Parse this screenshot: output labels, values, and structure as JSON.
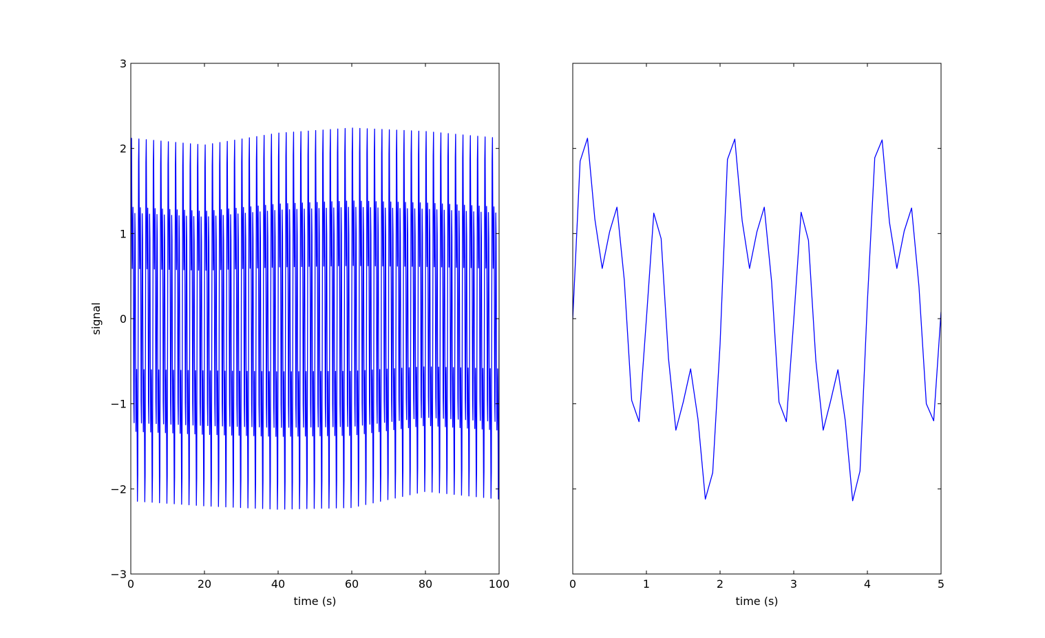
{
  "chart_data": [
    {
      "type": "line",
      "title": "",
      "xlabel": "time (s)",
      "ylabel": "signal",
      "xlim": [
        0,
        100
      ],
      "ylim": [
        -3,
        3
      ],
      "xticks": [
        0,
        20,
        40,
        60,
        80,
        100
      ],
      "yticks": [
        -3,
        -2,
        -1,
        0,
        1,
        2,
        3
      ],
      "xtick_labels": [
        "0",
        "20",
        "40",
        "60",
        "80",
        "100"
      ],
      "ytick_labels": [
        "−3",
        "−2",
        "−1",
        "0",
        "1",
        "2",
        "3"
      ],
      "grid": false,
      "series": [
        {
          "color": "#0000ff",
          "signal_model": {
            "sample_step": 0.1,
            "period": 2.0,
            "pattern": [
              0.0,
              1.85,
              2.12,
              1.17,
              0.59,
              1.02,
              1.31,
              0.45,
              -0.96,
              -1.21,
              0.0,
              1.24,
              0.94,
              -0.47,
              -1.31,
              -0.98,
              -0.59,
              -1.18,
              -2.12,
              -1.81
            ],
            "amplitude_envelope": {
              "x": [
                0,
                20,
                40,
                60,
                80,
                100
              ],
              "peak": [
                2.12,
                2.04,
                2.18,
                2.24,
                2.2,
                2.12
              ],
              "trough": [
                -2.14,
                -2.2,
                -2.24,
                -2.22,
                -2.03,
                -2.12
              ]
            }
          }
        }
      ]
    },
    {
      "type": "line",
      "title": "",
      "xlabel": "time (s)",
      "ylabel": "",
      "xlim": [
        0,
        5
      ],
      "ylim": [
        -3,
        3
      ],
      "xticks": [
        0,
        1,
        2,
        3,
        4,
        5
      ],
      "yticks": [
        -3,
        -2,
        -1,
        0,
        1,
        2,
        3
      ],
      "xtick_labels": [
        "0",
        "1",
        "2",
        "3",
        "4",
        "5"
      ],
      "ytick_labels": [],
      "grid": false,
      "series": [
        {
          "color": "#0000ff",
          "x": [
            0.0,
            0.1,
            0.2,
            0.3,
            0.4,
            0.5,
            0.6,
            0.7,
            0.8,
            0.9,
            1.0,
            1.1,
            1.2,
            1.3,
            1.4,
            1.5,
            1.6,
            1.7,
            1.8,
            1.9,
            2.0,
            2.1,
            2.2,
            2.3,
            2.4,
            2.5,
            2.6,
            2.7,
            2.8,
            2.9,
            3.0,
            3.1,
            3.2,
            3.3,
            3.4,
            3.5,
            3.6,
            3.7,
            3.8,
            3.9,
            4.0,
            4.1,
            4.2,
            4.3,
            4.4,
            4.5,
            4.6,
            4.7,
            4.8,
            4.9,
            5.0
          ],
          "y": [
            0.0,
            1.85,
            2.12,
            1.17,
            0.59,
            1.02,
            1.31,
            0.45,
            -0.96,
            -1.21,
            0.0,
            1.24,
            0.94,
            -0.47,
            -1.31,
            -0.98,
            -0.59,
            -1.18,
            -2.12,
            -1.81,
            -0.3,
            1.87,
            2.11,
            1.15,
            0.59,
            1.02,
            1.31,
            0.43,
            -0.98,
            -1.21,
            -0.02,
            1.25,
            0.92,
            -0.49,
            -1.31,
            -0.97,
            -0.6,
            -1.2,
            -2.14,
            -1.79,
            0.2,
            1.89,
            2.1,
            1.13,
            0.59,
            1.03,
            1.3,
            0.38,
            -1.0,
            -1.2,
            0.08
          ]
        }
      ]
    }
  ]
}
